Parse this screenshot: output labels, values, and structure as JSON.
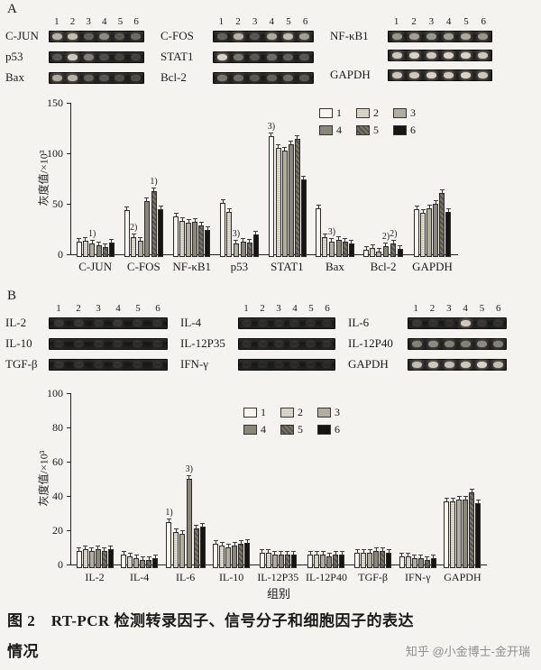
{
  "watermark": "知乎 @小金博士-金开瑞",
  "caption": {
    "line1": "图 2　RT-PCR 检测转录因子、信号分子和细胞因子的表达",
    "line2": "情况"
  },
  "panelA": {
    "label": "A",
    "lanes": [
      "1",
      "2",
      "3",
      "4",
      "5",
      "6"
    ],
    "columns": [
      {
        "rows": [
          {
            "label": "C-JUN",
            "bands": [
              0.75,
              0.8,
              0.35,
              0.55,
              0.3,
              0.4
            ]
          },
          {
            "label": "p53",
            "bands": [
              0.3,
              0.85,
              0.5,
              0.25,
              0.2,
              0.2
            ]
          },
          {
            "label": "Bax",
            "bands": [
              0.7,
              0.75,
              0.35,
              0.3,
              0.25,
              0.25
            ]
          }
        ]
      },
      {
        "rows": [
          {
            "label": "C-FOS",
            "bands": [
              0.35,
              0.75,
              0.3,
              0.7,
              0.8,
              0.65
            ]
          },
          {
            "label": "STAT1",
            "bands": [
              0.9,
              0.45,
              0.3,
              0.4,
              0.35,
              0.3
            ]
          },
          {
            "label": "Bcl-2",
            "bands": [
              0.45,
              0.4,
              0.3,
              0.35,
              0.4,
              0.3
            ]
          }
        ]
      },
      {
        "rows": [
          {
            "label": "NF-κB1",
            "bands": [
              0.6,
              0.65,
              0.6,
              0.65,
              0.7,
              0.6
            ]
          },
          {
            "label": "",
            "bands": [
              0.85,
              0.9,
              0.85,
              0.9,
              0.9,
              0.85
            ]
          },
          {
            "label": "GAPDH",
            "bands": [
              0.85,
              0.85,
              0.9,
              0.85,
              0.9,
              0.85
            ]
          }
        ]
      }
    ]
  },
  "panelB": {
    "label": "B",
    "lanes": [
      "1",
      "2",
      "3",
      "4",
      "5",
      "6"
    ],
    "columns": [
      {
        "rows": [
          {
            "label": "IL-2",
            "bands": [
              0.15,
              0.15,
              0.12,
              0.15,
              0.12,
              0.12
            ]
          },
          {
            "label": "IL-10",
            "bands": [
              0.1,
              0.1,
              0.1,
              0.1,
              0.1,
              0.1
            ]
          },
          {
            "label": "TGF-β",
            "bands": [
              0.12,
              0.12,
              0.1,
              0.12,
              0.1,
              0.1
            ]
          }
        ]
      },
      {
        "rows": [
          {
            "label": "IL-4",
            "bands": [
              0.1,
              0.1,
              0.1,
              0.1,
              0.1,
              0.1
            ]
          },
          {
            "label": "IL-12P35",
            "bands": [
              0.1,
              0.1,
              0.1,
              0.1,
              0.1,
              0.1
            ]
          },
          {
            "label": "IFN-γ",
            "bands": [
              0.08,
              0.08,
              0.08,
              0.08,
              0.08,
              0.08
            ]
          }
        ]
      },
      {
        "rows": [
          {
            "label": "IL-6",
            "bands": [
              0.15,
              0.12,
              0.1,
              0.85,
              0.15,
              0.12
            ]
          },
          {
            "label": "IL-12P40",
            "bands": [
              0.5,
              0.55,
              0.5,
              0.5,
              0.55,
              0.5
            ]
          },
          {
            "label": "GAPDH",
            "bands": [
              0.8,
              0.85,
              0.8,
              0.85,
              0.9,
              0.8
            ]
          }
        ]
      }
    ]
  },
  "chart_data": [
    {
      "type": "bar",
      "title": "",
      "xlabel": "",
      "ylabel": "灰度值/×10³",
      "ylim": [
        0,
        150
      ],
      "yticks": [
        0,
        50,
        100,
        150
      ],
      "grid": false,
      "error_bars": true,
      "categories": [
        "C-JUN",
        "C-FOS",
        "NF-κB1",
        "p53",
        "STAT1",
        "Bax",
        "Bcl-2",
        "GAPDH"
      ],
      "legend": {
        "labels": [
          "1",
          "2",
          "3",
          "4",
          "5",
          "6"
        ],
        "position": "top-right"
      },
      "series": [
        {
          "name": "1",
          "values": [
            15,
            46,
            40,
            54,
            120,
            48,
            7,
            47
          ]
        },
        {
          "name": "2",
          "values": [
            16,
            20,
            36,
            45,
            108,
            20,
            9,
            44
          ]
        },
        {
          "name": "3",
          "values": [
            13,
            16,
            34,
            13,
            105,
            15,
            5,
            48
          ]
        },
        {
          "name": "4",
          "values": [
            12,
            55,
            35,
            15,
            112,
            17,
            11,
            53
          ]
        },
        {
          "name": "5",
          "values": [
            10,
            65,
            31,
            14,
            117,
            15,
            13,
            63
          ]
        },
        {
          "name": "6",
          "values": [
            14,
            47,
            27,
            22,
            77,
            13,
            8,
            45
          ]
        }
      ],
      "annotations": [
        {
          "category_index": 0,
          "series_index": 2,
          "text": "1)"
        },
        {
          "category_index": 1,
          "series_index": 1,
          "text": "2)"
        },
        {
          "category_index": 1,
          "series_index": 4,
          "text": "1)"
        },
        {
          "category_index": 3,
          "series_index": 2,
          "text": "3)"
        },
        {
          "category_index": 4,
          "series_index": 0,
          "text": "3)"
        },
        {
          "category_index": 5,
          "series_index": 2,
          "text": "3)"
        },
        {
          "category_index": 6,
          "series_index": 3,
          "text": "2)"
        },
        {
          "category_index": 6,
          "series_index": 4,
          "text": "2)"
        }
      ]
    },
    {
      "type": "bar",
      "title": "",
      "xlabel": "组别",
      "ylabel": "灰度值/×10³",
      "ylim": [
        0,
        100
      ],
      "yticks": [
        0,
        20,
        40,
        60,
        80,
        100
      ],
      "grid": false,
      "error_bars": true,
      "categories": [
        "IL-2",
        "IL-4",
        "IL-6",
        "IL-10",
        "IL-12P35",
        "IL-12P40",
        "TGF-β",
        "IFN-γ",
        "GAPDH"
      ],
      "legend": {
        "labels": [
          "1",
          "2",
          "3",
          "4",
          "5",
          "6"
        ],
        "position": "top-center-right"
      },
      "series": [
        {
          "name": "1",
          "values": [
            10,
            8,
            27,
            14,
            9,
            8,
            9,
            7,
            39
          ]
        },
        {
          "name": "2",
          "values": [
            11,
            7,
            21,
            13,
            9,
            8,
            9,
            7,
            39
          ]
        },
        {
          "name": "3",
          "values": [
            10,
            6,
            20,
            12,
            8,
            8,
            9,
            6,
            40
          ]
        },
        {
          "name": "4",
          "values": [
            11,
            5,
            52,
            13,
            8,
            7,
            10,
            6,
            40
          ]
        },
        {
          "name": "5",
          "values": [
            10,
            5,
            23,
            14,
            8,
            8,
            10,
            5,
            44
          ]
        },
        {
          "name": "6",
          "values": [
            11,
            6,
            24,
            15,
            8,
            8,
            9,
            6,
            38
          ]
        }
      ],
      "annotations": [
        {
          "category_index": 2,
          "series_index": 0,
          "text": "1)"
        },
        {
          "category_index": 2,
          "series_index": 3,
          "text": "3)"
        }
      ]
    }
  ]
}
